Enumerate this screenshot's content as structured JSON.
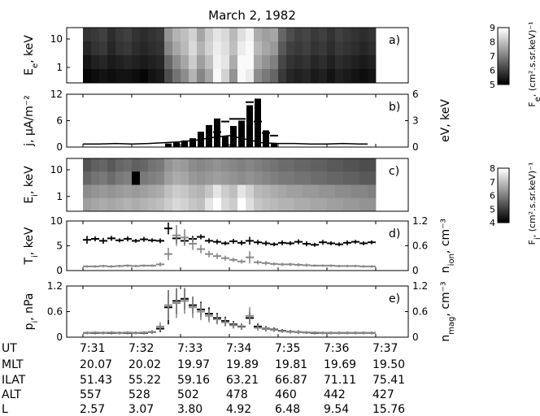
{
  "title": "March 2, 1982",
  "chart_data": [
    {
      "panel": "a)",
      "type": "heatmap",
      "ylabel": "E_e, keV",
      "yticks": [
        "10",
        "1"
      ],
      "colorbar": {
        "label": "F_e, (cm².s.sr.keV)⁻¹",
        "ticks": [
          "9",
          "8",
          "7",
          "6",
          "5"
        ]
      },
      "x": [
        "7:31:00",
        "7:31:10",
        "7:31:20",
        "7:31:30",
        "7:31:40",
        "7:31:50",
        "7:32:00",
        "7:32:10",
        "7:32:20",
        "7:32:30",
        "7:32:40",
        "7:32:50",
        "7:33:00",
        "7:33:10",
        "7:33:20",
        "7:33:30",
        "7:33:40",
        "7:33:50",
        "7:34:00",
        "7:34:10",
        "7:34:20",
        "7:34:30",
        "7:34:40",
        "7:34:50",
        "7:35:00",
        "7:35:10",
        "7:35:20",
        "7:35:30",
        "7:35:40",
        "7:35:50",
        "7:36:00",
        "7:36:10",
        "7:36:20",
        "7:36:30",
        "7:36:40",
        "7:36:50"
      ],
      "values": [
        [
          5.8,
          5.9,
          6.0,
          5.7,
          5.9,
          6.0,
          5.8,
          5.7,
          5.8,
          5.9,
          7.3,
          7.8,
          8.0,
          8.3,
          7.6,
          8.2,
          8.6,
          8.4,
          7.9,
          8.5,
          8.8,
          7.7,
          7.5,
          7.6,
          6.6,
          6.2,
          6.0,
          6.1,
          5.9,
          6.0,
          5.8,
          6.0,
          5.9,
          5.8,
          5.7,
          5.8
        ],
        [
          5.6,
          5.8,
          5.9,
          5.6,
          5.8,
          5.9,
          5.7,
          5.6,
          5.7,
          5.8,
          7.1,
          7.6,
          7.9,
          8.4,
          7.8,
          8.3,
          8.7,
          8.5,
          8.0,
          8.7,
          8.9,
          7.9,
          7.6,
          7.4,
          6.4,
          6.0,
          5.9,
          6.0,
          5.8,
          5.9,
          5.7,
          5.9,
          5.8,
          5.7,
          5.6,
          5.7
        ],
        [
          5.3,
          5.5,
          5.6,
          5.4,
          5.5,
          5.6,
          5.5,
          5.4,
          5.5,
          5.6,
          6.6,
          7.2,
          7.6,
          8.2,
          7.5,
          8.0,
          8.8,
          8.6,
          7.7,
          8.9,
          8.9,
          7.6,
          7.3,
          7.0,
          6.1,
          5.8,
          5.7,
          5.8,
          5.6,
          5.7,
          5.5,
          5.7,
          5.6,
          5.5,
          5.4,
          5.5
        ],
        [
          5.1,
          5.2,
          5.3,
          5.2,
          5.3,
          5.3,
          5.2,
          5.1,
          5.3,
          5.4,
          6.2,
          6.8,
          7.2,
          7.8,
          7.1,
          7.6,
          8.9,
          8.3,
          7.3,
          8.9,
          8.7,
          7.2,
          6.9,
          6.6,
          5.9,
          5.6,
          5.5,
          5.6,
          5.4,
          5.5,
          5.3,
          5.5,
          5.4,
          5.3,
          5.2,
          5.3
        ]
      ]
    },
    {
      "panel": "b)",
      "type": "bar",
      "ylabel": "j, μA/m⁻²",
      "ylim": [
        0,
        12
      ],
      "yticks": [
        0,
        6,
        12
      ],
      "y2label": "eV, keV",
      "y2lim": [
        0,
        6
      ],
      "y2ticks": [
        0,
        3,
        6
      ],
      "x": [
        "7:32:40",
        "7:32:50",
        "7:33:00",
        "7:33:10",
        "7:33:20",
        "7:33:30",
        "7:33:40",
        "7:33:50",
        "7:34:00",
        "7:34:10",
        "7:34:20",
        "7:34:30",
        "7:34:40",
        "7:34:50"
      ],
      "values": [
        0.8,
        1.0,
        1.5,
        2.0,
        3.5,
        5.0,
        6.5,
        2.5,
        4.8,
        6.0,
        9.5,
        11.0,
        3.8,
        0.8
      ],
      "ev_line": {
        "x": [
          "7:31:00",
          "7:31:20",
          "7:31:40",
          "7:32:00",
          "7:32:20",
          "7:32:40",
          "7:33:00",
          "7:33:20",
          "7:33:40",
          "7:34:00",
          "7:34:20",
          "7:34:40",
          "7:35:00",
          "7:35:20",
          "7:35:40",
          "7:36:00",
          "7:36:20",
          "7:36:40",
          "7:36:50"
        ],
        "values": [
          0.35,
          0.35,
          0.4,
          0.35,
          0.4,
          0.5,
          0.6,
          0.8,
          1.1,
          1.3,
          0.9,
          0.5,
          0.4,
          0.4,
          0.35,
          0.35,
          0.4,
          0.35,
          0.35
        ]
      },
      "ev_marks": {
        "x": [
          "7:33:40",
          "7:33:50",
          "7:34:00",
          "7:34:10",
          "7:34:20",
          "7:34:30",
          "7:34:40",
          "7:34:50"
        ],
        "values": [
          1.7,
          2.9,
          3.2,
          3.2,
          5.1,
          2.9,
          1.6,
          1.3
        ]
      }
    },
    {
      "panel": "c)",
      "type": "heatmap",
      "ylabel": "E_i, keV",
      "yticks": [
        "10",
        "1"
      ],
      "colorbar": {
        "label": "F_i, (cm².s.sr.keV)⁻¹",
        "ticks": [
          "8",
          "7",
          "6",
          "5",
          "4"
        ]
      },
      "x": [
        "7:31:00",
        "7:31:10",
        "7:31:20",
        "7:31:30",
        "7:31:40",
        "7:31:50",
        "7:32:00",
        "7:32:10",
        "7:32:20",
        "7:32:30",
        "7:32:40",
        "7:32:50",
        "7:33:00",
        "7:33:10",
        "7:33:20",
        "7:33:30",
        "7:33:40",
        "7:33:50",
        "7:34:00",
        "7:34:10",
        "7:34:20",
        "7:34:30",
        "7:34:40",
        "7:34:50",
        "7:35:00",
        "7:35:10",
        "7:35:20",
        "7:35:30",
        "7:35:40",
        "7:35:50",
        "7:36:00",
        "7:36:10",
        "7:36:20",
        "7:36:30",
        "7:36:40",
        "7:36:50"
      ],
      "values": [
        [
          5.3,
          5.5,
          5.6,
          5.4,
          5.6,
          5.7,
          5.5,
          5.6,
          5.8,
          5.9,
          6.3,
          6.5,
          6.4,
          6.2,
          6.1,
          6.2,
          6.3,
          6.2,
          6.1,
          6.0,
          6.1,
          6.0,
          5.9,
          5.8,
          5.7,
          5.7,
          5.6,
          5.6,
          5.5,
          5.5,
          5.4,
          5.4,
          5.3,
          5.3,
          5.2,
          5.2
        ],
        [
          5.6,
          5.8,
          5.9,
          5.7,
          5.9,
          6.0,
          4.0,
          5.9,
          6.0,
          6.1,
          6.5,
          6.7,
          6.6,
          6.4,
          6.3,
          6.4,
          6.5,
          6.4,
          6.3,
          6.2,
          6.3,
          6.2,
          6.1,
          6.0,
          5.9,
          5.9,
          5.8,
          5.8,
          5.7,
          5.7,
          5.6,
          5.6,
          5.5,
          5.5,
          5.4,
          5.4
        ],
        [
          6.2,
          6.3,
          6.4,
          6.3,
          6.4,
          6.5,
          6.4,
          6.5,
          6.6,
          6.7,
          7.0,
          7.2,
          7.1,
          6.9,
          6.8,
          7.1,
          7.6,
          7.2,
          7.0,
          7.6,
          7.3,
          6.9,
          6.8,
          6.7,
          6.6,
          6.5,
          6.5,
          6.4,
          6.4,
          6.3,
          6.3,
          6.2,
          6.2,
          6.1,
          6.1,
          6.0
        ],
        [
          6.5,
          6.6,
          6.7,
          6.6,
          6.7,
          6.8,
          6.7,
          6.8,
          6.9,
          7.0,
          7.2,
          7.4,
          7.3,
          7.1,
          7.0,
          7.6,
          8.0,
          7.4,
          7.2,
          8.0,
          7.5,
          7.1,
          7.0,
          6.9,
          6.8,
          6.8,
          6.7,
          6.7,
          6.6,
          6.6,
          6.5,
          6.5,
          6.4,
          6.4,
          6.3,
          6.3
        ]
      ]
    },
    {
      "panel": "d)",
      "type": "scatter",
      "ylabel": "T_i, keV",
      "ylim": [
        0,
        10
      ],
      "yticks": [
        0,
        5,
        10
      ],
      "y2label": "n_ion, cm⁻³",
      "y2lim": [
        0,
        1.2
      ],
      "y2ticks": [
        "0",
        "0.6",
        "1.2"
      ],
      "x": [
        "7:31:00",
        "7:31:10",
        "7:31:20",
        "7:31:30",
        "7:31:40",
        "7:31:50",
        "7:32:00",
        "7:32:10",
        "7:32:20",
        "7:32:30",
        "7:32:40",
        "7:32:50",
        "7:33:00",
        "7:33:10",
        "7:33:20",
        "7:33:30",
        "7:33:40",
        "7:33:50",
        "7:34:00",
        "7:34:10",
        "7:34:20",
        "7:34:30",
        "7:34:40",
        "7:34:50",
        "7:35:00",
        "7:35:10",
        "7:35:20",
        "7:35:30",
        "7:35:40",
        "7:35:50",
        "7:36:00",
        "7:36:10",
        "7:36:20",
        "7:36:30",
        "7:36:40",
        "7:36:50"
      ],
      "series": [
        {
          "color": "#000000",
          "axis": "left",
          "values": [
            6.2,
            6.4,
            6.0,
            6.5,
            6.1,
            6.4,
            6.0,
            6.3,
            6.1,
            6.0,
            8.5,
            6.5,
            6.0,
            6.4,
            6.8,
            6.0,
            5.8,
            5.5,
            5.9,
            5.6,
            6.0,
            5.7,
            5.5,
            5.3,
            5.6,
            5.5,
            5.8,
            5.4,
            5.2,
            5.7,
            5.5,
            5.3,
            5.6,
            5.8,
            5.5,
            5.7
          ],
          "err": [
            0.8,
            0.5,
            0.6,
            0.5,
            0.4,
            0.5,
            0.4,
            0.5,
            0.4,
            0.5,
            1.2,
            1.0,
            0.8,
            0.6,
            0.5,
            0.5,
            0.5,
            0.4,
            0.5,
            0.5,
            0.8,
            0.5,
            0.5,
            0.4,
            0.5,
            0.4,
            0.5,
            0.5,
            0.4,
            0.5,
            0.4,
            0.4,
            0.5,
            0.4,
            0.4,
            0.4
          ]
        },
        {
          "color": "#888888",
          "axis": "right",
          "values": [
            0.1,
            0.1,
            0.11,
            0.1,
            0.11,
            0.12,
            0.11,
            0.12,
            0.12,
            0.15,
            0.4,
            0.85,
            0.8,
            0.65,
            0.52,
            0.4,
            0.35,
            0.3,
            0.26,
            0.22,
            0.32,
            0.2,
            0.18,
            0.16,
            0.15,
            0.15,
            0.14,
            0.13,
            0.12,
            0.12,
            0.12,
            0.11,
            0.11,
            0.11,
            0.1,
            0.1
          ],
          "err": [
            0.03,
            0.03,
            0.03,
            0.03,
            0.03,
            0.03,
            0.03,
            0.03,
            0.03,
            0.05,
            0.15,
            0.25,
            0.2,
            0.15,
            0.1,
            0.08,
            0.07,
            0.06,
            0.05,
            0.05,
            0.15,
            0.05,
            0.05,
            0.04,
            0.04,
            0.04,
            0.04,
            0.04,
            0.03,
            0.03,
            0.03,
            0.03,
            0.03,
            0.03,
            0.03,
            0.03
          ]
        }
      ]
    },
    {
      "panel": "e)",
      "type": "scatter",
      "ylabel": "p_i, nPa",
      "ylim": [
        0,
        1.2
      ],
      "yticks": [
        "0",
        "0.6",
        "1.2"
      ],
      "y2label": "n_mag, cm⁻³",
      "y2lim": [
        0,
        1.2
      ],
      "y2ticks": [
        "0",
        "0.6",
        "1.2"
      ],
      "x": [
        "7:31:00",
        "7:31:10",
        "7:31:20",
        "7:31:30",
        "7:31:40",
        "7:31:50",
        "7:32:00",
        "7:32:10",
        "7:32:20",
        "7:32:30",
        "7:32:40",
        "7:32:50",
        "7:33:00",
        "7:33:10",
        "7:33:20",
        "7:33:30",
        "7:33:40",
        "7:33:50",
        "7:34:00",
        "7:34:10",
        "7:34:20",
        "7:34:30",
        "7:34:40",
        "7:34:50",
        "7:35:00",
        "7:35:10",
        "7:35:20",
        "7:35:30",
        "7:35:40",
        "7:35:50",
        "7:36:00",
        "7:36:10",
        "7:36:20",
        "7:36:30",
        "7:36:40",
        "7:36:50"
      ],
      "series": [
        {
          "color": "#000000",
          "axis": "left",
          "values": [
            0.1,
            0.1,
            0.1,
            0.1,
            0.1,
            0.1,
            0.1,
            0.1,
            0.12,
            0.2,
            0.7,
            0.85,
            0.9,
            0.75,
            0.65,
            0.55,
            0.45,
            0.38,
            0.3,
            0.25,
            0.45,
            0.25,
            0.2,
            0.18,
            0.15,
            0.13,
            0.12,
            0.11,
            0.1,
            0.1,
            0.1,
            0.1,
            0.1,
            0.1,
            0.1,
            0.1
          ],
          "err": [
            0.03,
            0.03,
            0.03,
            0.03,
            0.03,
            0.03,
            0.03,
            0.03,
            0.04,
            0.08,
            0.4,
            0.3,
            0.25,
            0.2,
            0.18,
            0.15,
            0.12,
            0.1,
            0.08,
            0.07,
            0.15,
            0.07,
            0.06,
            0.05,
            0.04,
            0.04,
            0.04,
            0.03,
            0.03,
            0.03,
            0.03,
            0.03,
            0.03,
            0.03,
            0.03,
            0.03
          ]
        },
        {
          "color": "#888888",
          "axis": "right",
          "values": [
            0.1,
            0.11,
            0.1,
            0.11,
            0.1,
            0.11,
            0.1,
            0.11,
            0.12,
            0.25,
            0.75,
            0.8,
            0.85,
            0.7,
            0.6,
            0.5,
            0.42,
            0.35,
            0.28,
            0.24,
            0.5,
            0.22,
            0.19,
            0.17,
            0.14,
            0.13,
            0.12,
            0.11,
            0.11,
            0.1,
            0.1,
            0.1,
            0.1,
            0.1,
            0.1,
            0.1
          ],
          "err": [
            0.03,
            0.03,
            0.03,
            0.03,
            0.03,
            0.03,
            0.03,
            0.03,
            0.04,
            0.1,
            0.35,
            0.35,
            0.3,
            0.25,
            0.2,
            0.15,
            0.12,
            0.1,
            0.08,
            0.07,
            0.2,
            0.07,
            0.06,
            0.05,
            0.04,
            0.04,
            0.04,
            0.03,
            0.03,
            0.03,
            0.03,
            0.03,
            0.03,
            0.03,
            0.03,
            0.03
          ]
        }
      ]
    }
  ],
  "ephemeris": {
    "rows": [
      {
        "label": "UT",
        "values": [
          "7:31",
          "7:32",
          "7:33",
          "7:34",
          "7:35",
          "7:36",
          "7:37"
        ]
      },
      {
        "label": "MLT",
        "values": [
          "20.07",
          "20.02",
          "19.97",
          "19.89",
          "19.81",
          "19.69",
          "19.50"
        ]
      },
      {
        "label": "ILAT",
        "values": [
          "51.43",
          "55.22",
          "59.16",
          "63.21",
          "66.87",
          "71.11",
          "75.41"
        ]
      },
      {
        "label": "ALT",
        "values": [
          "557",
          "528",
          "502",
          "478",
          "460",
          "442",
          "427"
        ]
      },
      {
        "label": "L",
        "values": [
          "2.57",
          "3.07",
          "3.80",
          "4.92",
          "6.48",
          "9.54",
          "15.76"
        ]
      }
    ]
  }
}
